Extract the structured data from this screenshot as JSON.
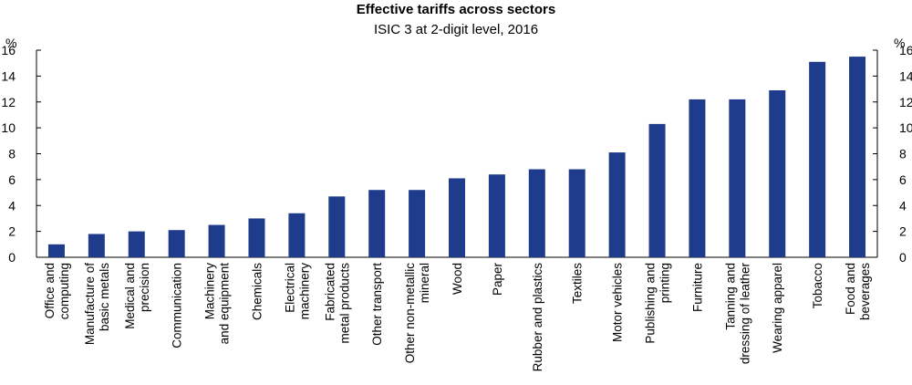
{
  "chart_data": {
    "type": "bar",
    "title": "Effective tariffs across sectors",
    "subtitle": "ISIC 3 at 2-digit level, 2016",
    "unit_left": "%",
    "unit_right": "%",
    "ylim": [
      0,
      16
    ],
    "yticks": [
      0,
      2,
      4,
      6,
      8,
      10,
      12,
      14,
      16
    ],
    "grid": false,
    "bar_color": "#1f3b8c",
    "categories": [
      [
        "Office and",
        "computing"
      ],
      [
        "Manufacture of",
        "basic metals"
      ],
      [
        "Medical and",
        "precision"
      ],
      [
        "Communication"
      ],
      [
        "Machinery",
        "and equipment"
      ],
      [
        "Chemicals"
      ],
      [
        "Electrical",
        "machinery"
      ],
      [
        "Fabricated",
        "metal products"
      ],
      [
        "Other transport"
      ],
      [
        "Other non-metallic",
        "mineral"
      ],
      [
        "Wood"
      ],
      [
        "Paper"
      ],
      [
        "Rubber and plastics"
      ],
      [
        "Textiles"
      ],
      [
        "Motor vehicles"
      ],
      [
        "Publishing and",
        "printing"
      ],
      [
        "Furniture"
      ],
      [
        "Tanning and",
        "dressing of leather"
      ],
      [
        "Wearing apparel"
      ],
      [
        "Tobacco"
      ],
      [
        "Food and",
        "beverages"
      ]
    ],
    "values": [
      1.0,
      1.8,
      2.0,
      2.1,
      2.5,
      3.0,
      3.4,
      4.7,
      5.2,
      5.2,
      6.1,
      6.4,
      6.8,
      6.8,
      8.1,
      10.3,
      12.2,
      12.2,
      12.9,
      15.1,
      15.5
    ]
  }
}
